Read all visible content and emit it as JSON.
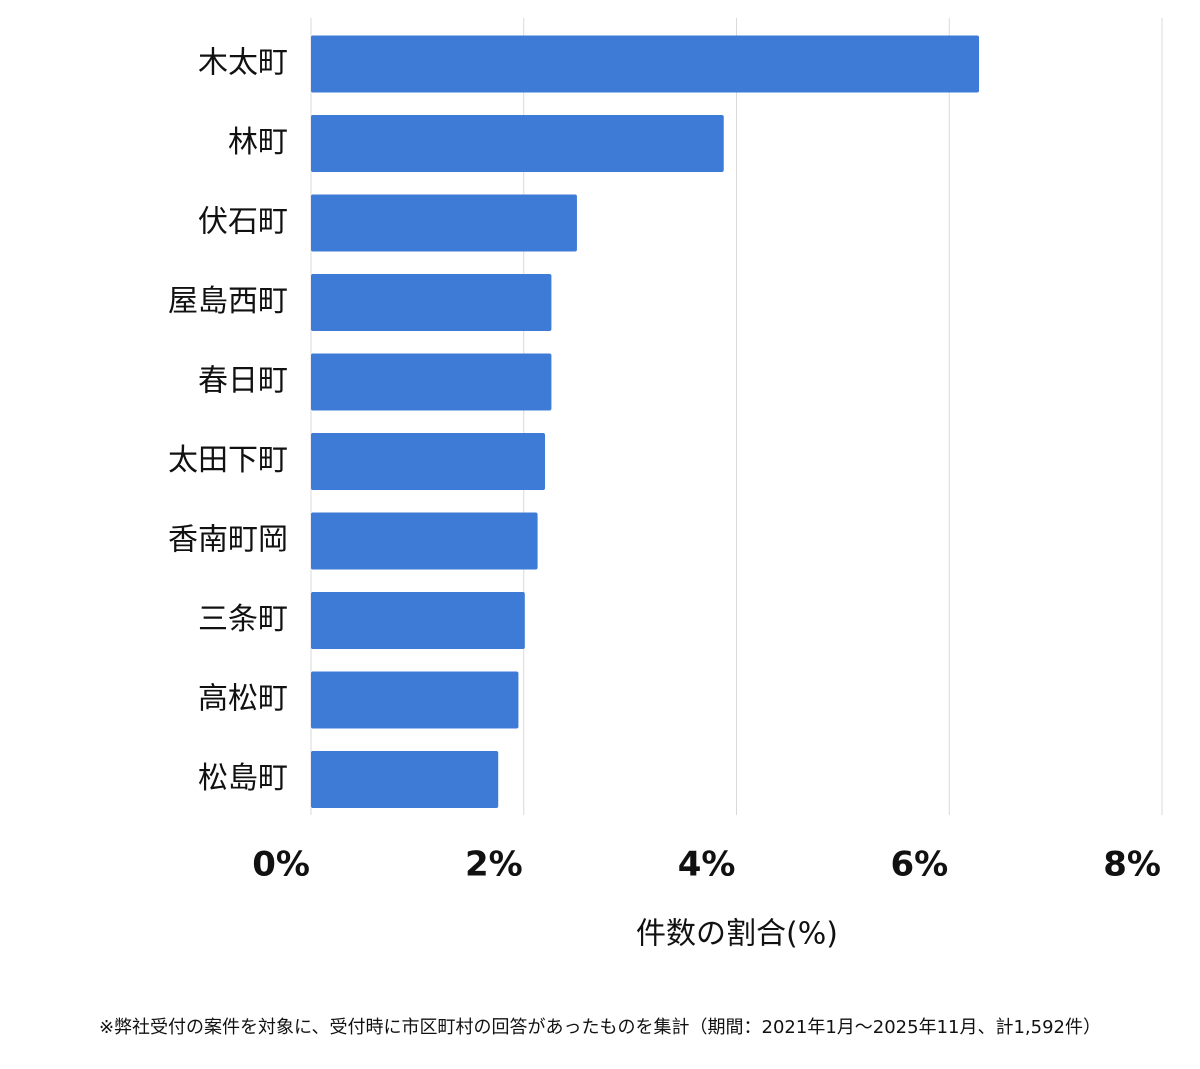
{
  "chart_data": {
    "type": "bar",
    "orientation": "horizontal",
    "categories": [
      "木太町",
      "林町",
      "伏石町",
      "屋島西町",
      "春日町",
      "太田下町",
      "香南町岡",
      "三条町",
      "高松町",
      "松島町"
    ],
    "values": [
      6.28,
      3.88,
      2.5,
      2.26,
      2.26,
      2.2,
      2.13,
      2.01,
      1.95,
      1.76
    ],
    "color": "#3d7bd6",
    "xlim": [
      0,
      8
    ],
    "xticks": [
      {
        "value": 0,
        "label": "0%"
      },
      {
        "value": 2,
        "label": "2%"
      },
      {
        "value": 4,
        "label": "4%"
      },
      {
        "value": 6,
        "label": "6%"
      },
      {
        "value": 8,
        "label": "8%"
      }
    ],
    "grid": true,
    "xlabel": "件数の割合(%)",
    "note": "※弊社受付の案件を対象に、受付時に市区町村の回答があったものを集計（期間：2021年1月～2025年11月、計1,592件）"
  }
}
